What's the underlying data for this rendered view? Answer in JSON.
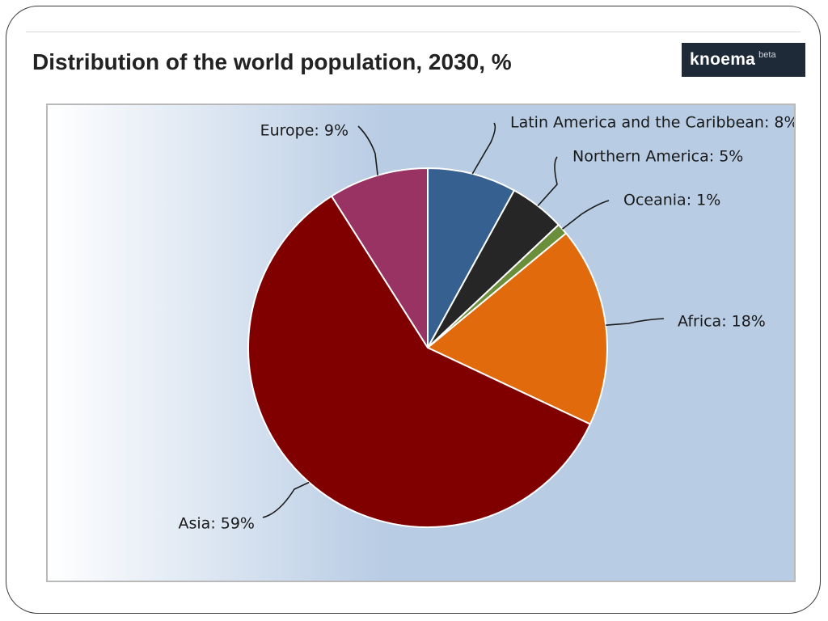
{
  "chart_data": {
    "type": "pie",
    "title": "Distribution of the world population, 2030, %",
    "start_angle_deg": 0,
    "direction": "clockwise",
    "slices": [
      {
        "name": "Latin America and the Caribbean",
        "value": 8,
        "color": "#36608f"
      },
      {
        "name": "Northern America",
        "value": 5,
        "color": "#262626"
      },
      {
        "name": "Oceania",
        "value": 1,
        "color": "#6a8e3a"
      },
      {
        "name": "Africa",
        "value": 18,
        "color": "#e06a0c"
      },
      {
        "name": "Asia",
        "value": 59,
        "color": "#800000"
      },
      {
        "name": "Europe",
        "value": 9,
        "color": "#983364"
      }
    ],
    "data_labels": [
      "Latin America and the Caribbean: 8%",
      "Northern America: 5%",
      "Oceania: 1%",
      "Africa: 18%",
      "Asia: 59%",
      "Europe: 9%"
    ]
  },
  "logo": {
    "text": "knoema",
    "sup": "beta"
  },
  "colors": {
    "plot_bg_left": "#ffffff",
    "plot_bg_right": "#b8cce4",
    "slice_border": "#ffffff",
    "connector": "#1a1a1a"
  }
}
